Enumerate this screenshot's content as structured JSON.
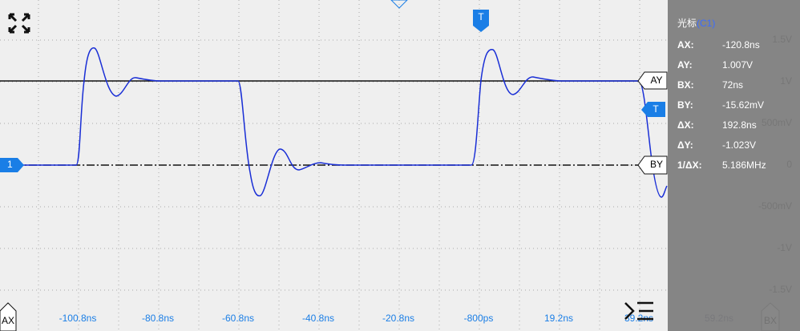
{
  "x_axis_labels": [
    "-100.8ns",
    "-80.8ns",
    "-60.8ns",
    "-40.8ns",
    "-20.8ns",
    "-800ps",
    "19.2ns",
    "39.2ns",
    "59.2ns"
  ],
  "y_axis_labels": [
    "1.5V",
    "1V",
    "500mV",
    "0",
    "-500mV",
    "-1V",
    "-1.5V"
  ],
  "markers": {
    "ay": "AY",
    "by": "BY",
    "ax": "AX",
    "bx": "BX",
    "trigger_top": "T",
    "trigger_right": "T",
    "channel": "1"
  },
  "cursor_panel": {
    "title": "光标",
    "source": "(C1)",
    "rows": [
      [
        "AX:",
        "-120.8ns"
      ],
      [
        "AY:",
        "1.007V"
      ],
      [
        "BX:",
        "72ns"
      ],
      [
        "BY:",
        "-15.62mV"
      ],
      [
        "ΔX:",
        "192.8ns"
      ],
      [
        "ΔY:",
        "-1.023V"
      ],
      [
        "1/ΔX:",
        "5.186MHz"
      ]
    ]
  }
}
